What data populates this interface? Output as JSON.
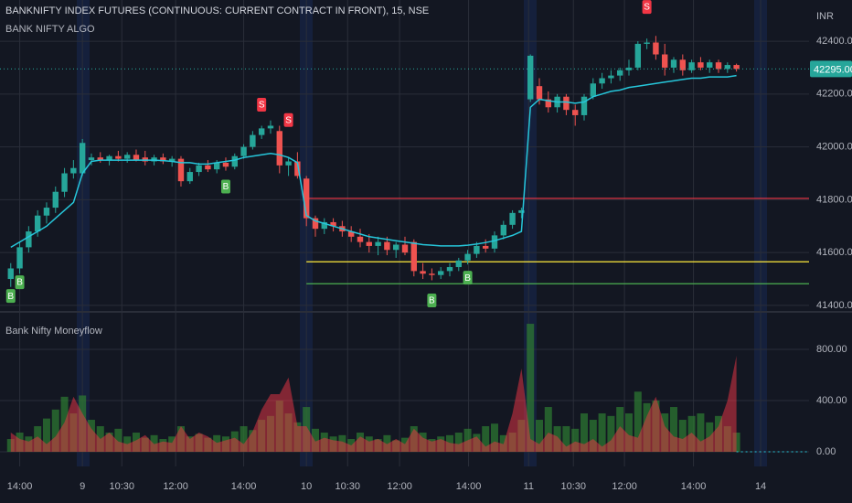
{
  "chart_data": [
    {
      "type": "candlestick",
      "title": "BANKNIFTY INDEX FUTURES (CONTINUOUS: CURRENT CONTRACT IN FRONT), 15, NSE",
      "subtitle": "BANK NIFTY ALGO",
      "currency": "INR",
      "up_color": "#26a69a",
      "down_color": "#ef5350",
      "open": [
        41500,
        41540,
        41620,
        41680,
        41740,
        41770,
        41830,
        41900,
        41900,
        41950,
        41960,
        41950,
        41965,
        41955,
        41970,
        41960,
        41945,
        41960,
        41945,
        41955,
        41870,
        41905,
        41930,
        41915,
        41940,
        41925,
        41965,
        42000,
        42045,
        42070,
        42060,
        41930,
        41945,
        41880,
        41730,
        41690,
        41715,
        41700,
        41680,
        41660,
        41640,
        41625,
        41640,
        41610,
        41630,
        41640,
        41530,
        41520,
        41515,
        41530,
        41545,
        41570,
        41595,
        41625,
        41615,
        41665,
        41705,
        41750,
        42180,
        42230,
        42180,
        42150,
        42190,
        42140,
        42120,
        42190,
        42240,
        42260,
        42270,
        42290,
        42300,
        42390,
        42395,
        42350,
        42300,
        42330,
        42290,
        42320,
        42300,
        42320,
        42295,
        42310
      ],
      "high": [
        41560,
        41640,
        41700,
        41760,
        41790,
        41850,
        41920,
        41950,
        42030,
        41975,
        41980,
        41970,
        41985,
        41980,
        41990,
        41985,
        41970,
        41975,
        41965,
        41965,
        41920,
        41940,
        41950,
        41950,
        41960,
        41975,
        42010,
        42060,
        42080,
        42100,
        42080,
        41960,
        41980,
        41890,
        41740,
        41730,
        41730,
        41720,
        41700,
        41690,
        41670,
        41660,
        41660,
        41640,
        41660,
        41650,
        41560,
        41540,
        41545,
        41560,
        41580,
        41610,
        41640,
        41650,
        41680,
        41720,
        41760,
        41770,
        42350,
        42260,
        42210,
        42200,
        42200,
        42160,
        42200,
        42260,
        42280,
        42290,
        42300,
        42330,
        42400,
        42410,
        42420,
        42390,
        42340,
        42350,
        42330,
        42340,
        42330,
        42330,
        42320,
        42315
      ],
      "low": [
        41470,
        41520,
        41600,
        41660,
        41710,
        41750,
        41810,
        41880,
        41890,
        41930,
        41940,
        41930,
        41945,
        41940,
        41945,
        41930,
        41930,
        41935,
        41925,
        41850,
        41860,
        41890,
        41905,
        41900,
        41910,
        41915,
        41955,
        41990,
        42030,
        42050,
        41900,
        41890,
        41880,
        41700,
        41660,
        41670,
        41680,
        41660,
        41640,
        41620,
        41600,
        41590,
        41590,
        41580,
        41590,
        41510,
        41500,
        41495,
        41500,
        41510,
        41530,
        41555,
        41580,
        41600,
        41600,
        41650,
        41690,
        41730,
        42170,
        42160,
        42130,
        42130,
        42120,
        42080,
        42100,
        42180,
        42220,
        42240,
        42250,
        42270,
        42290,
        42370,
        42330,
        42270,
        42280,
        42270,
        42280,
        42290,
        42280,
        42280,
        42280,
        42285
      ],
      "close": [
        41540,
        41620,
        41680,
        41740,
        41770,
        41830,
        41900,
        41920,
        42015,
        41960,
        41950,
        41965,
        41955,
        41970,
        41950,
        41945,
        41960,
        41945,
        41955,
        41870,
        41905,
        41930,
        41915,
        41940,
        41925,
        41965,
        42000,
        42045,
        42070,
        42080,
        41930,
        41945,
        41890,
        41730,
        41690,
        41715,
        41700,
        41680,
        41660,
        41640,
        41625,
        41640,
        41610,
        41630,
        41600,
        41530,
        41520,
        41515,
        41530,
        41545,
        41570,
        41595,
        41625,
        41615,
        41665,
        41705,
        41750,
        41760,
        42345,
        42180,
        42150,
        42190,
        42140,
        42120,
        42190,
        42240,
        42260,
        42270,
        42290,
        42300,
        42390,
        42395,
        42350,
        42300,
        42330,
        42290,
        42320,
        42300,
        42320,
        42295,
        42310,
        42295
      ],
      "ma": {
        "color": "#26c6da",
        "values": [
          41620,
          41640,
          41660,
          41680,
          41700,
          41730,
          41760,
          41790,
          41900,
          41945,
          41950,
          41950,
          41950,
          41950,
          41950,
          41950,
          41950,
          41948,
          41945,
          41940,
          41940,
          41935,
          41935,
          41940,
          41945,
          41950,
          41960,
          41965,
          41970,
          41975,
          41970,
          41960,
          41940,
          41740,
          41720,
          41710,
          41700,
          41690,
          41680,
          41670,
          41660,
          41655,
          41650,
          41645,
          41640,
          41635,
          41630,
          41628,
          41625,
          41625,
          41625,
          41628,
          41632,
          41638,
          41645,
          41655,
          41665,
          41680,
          42150,
          42180,
          42175,
          42170,
          42170,
          42165,
          42170,
          42190,
          42200,
          42210,
          42215,
          42225,
          42230,
          42235,
          42240,
          42245,
          42250,
          42255,
          42260,
          42260,
          42265,
          42265,
          42265,
          42270
        ]
      },
      "levels": [
        {
          "value": 41805,
          "color": "#f23645",
          "x": 33
        },
        {
          "value": 41565,
          "color": "#ffeb3b",
          "x": 33
        },
        {
          "value": 41482,
          "color": "#4caf50",
          "x": 33
        }
      ],
      "signals": [
        {
          "label": "B",
          "x": 0,
          "value": 41434,
          "color": "#4caf50"
        },
        {
          "label": "B",
          "x": 1,
          "value": 41486,
          "color": "#4caf50"
        },
        {
          "label": "B",
          "x": 24,
          "value": 41848,
          "color": "#4caf50"
        },
        {
          "label": "B",
          "x": 47,
          "value": 41417,
          "color": "#4caf50"
        },
        {
          "label": "B",
          "x": 51,
          "value": 41503,
          "color": "#4caf50"
        },
        {
          "label": "S",
          "x": 28,
          "value": 42158,
          "color": "#f23645"
        },
        {
          "label": "S",
          "x": 31,
          "value": 42100,
          "color": "#f23645"
        },
        {
          "label": "S",
          "x": 71,
          "value": 42528,
          "color": "#f23645"
        }
      ],
      "last_price": {
        "value": 42295,
        "label": "42295.00",
        "color": "#26a69a"
      },
      "ylim": [
        41379,
        42556
      ],
      "yticks": [
        {
          "value": 41400,
          "label": "41400.00"
        },
        {
          "value": 41600,
          "label": "41600.00"
        },
        {
          "value": 41800,
          "label": "41800.00"
        },
        {
          "value": 42000,
          "label": "42000.00"
        },
        {
          "value": 42200,
          "label": "42200.00"
        },
        {
          "value": 42400,
          "label": "42400.00"
        }
      ],
      "xlim": [
        -1.2,
        89.1
      ],
      "xticks": [
        {
          "value": 1,
          "label": "14:00"
        },
        {
          "value": 8,
          "label": "9"
        },
        {
          "value": 12.4,
          "label": "10:30"
        },
        {
          "value": 18.4,
          "label": "12:00"
        },
        {
          "value": 26,
          "label": "14:00"
        },
        {
          "value": 33,
          "label": "10"
        },
        {
          "value": 37.6,
          "label": "10:30"
        },
        {
          "value": 43.4,
          "label": "12:00"
        },
        {
          "value": 51.1,
          "label": "14:00"
        },
        {
          "value": 57.8,
          "label": "11"
        },
        {
          "value": 62.8,
          "label": "10:30"
        },
        {
          "value": 68.5,
          "label": "12:00"
        },
        {
          "value": 76.2,
          "label": "14:00"
        },
        {
          "value": 83.7,
          "label": "14"
        }
      ],
      "grid": true
    },
    {
      "type": "moneyflow",
      "title": "Bank Nifty Moneyflow",
      "bars": {
        "color": "#2e7d32",
        "values": [
          100,
          150,
          120,
          200,
          260,
          330,
          430,
          300,
          440,
          250,
          200,
          150,
          180,
          120,
          150,
          110,
          130,
          100,
          120,
          200,
          120,
          140,
          110,
          130,
          120,
          160,
          200,
          170,
          250,
          280,
          400,
          300,
          230,
          350,
          180,
          150,
          120,
          130,
          100,
          150,
          120,
          100,
          130,
          90,
          110,
          200,
          150,
          100,
          120,
          130,
          150,
          180,
          140,
          200,
          220,
          130,
          150,
          250,
          1000,
          250,
          350,
          200,
          200,
          180,
          300,
          250,
          300,
          280,
          350,
          300,
          470,
          380,
          400,
          300,
          350,
          250,
          280,
          300,
          230,
          280,
          200,
          150
        ]
      },
      "area": {
        "color": "#f23645",
        "values": [
          150,
          100,
          80,
          120,
          60,
          120,
          230,
          430,
          300,
          180,
          100,
          150,
          80,
          60,
          90,
          130,
          60,
          80,
          70,
          200,
          100,
          150,
          120,
          70,
          90,
          110,
          60,
          160,
          330,
          450,
          450,
          580,
          200,
          200,
          80,
          110,
          90,
          80,
          50,
          120,
          80,
          100,
          60,
          100,
          60,
          180,
          110,
          80,
          100,
          70,
          60,
          90,
          120,
          40,
          80,
          60,
          300,
          650,
          100,
          60,
          150,
          120,
          40,
          80,
          60,
          100,
          40,
          90,
          200,
          130,
          110,
          280,
          430,
          200,
          120,
          100,
          150,
          80,
          120,
          200,
          400,
          750
        ]
      },
      "ylim": [
        -114,
        1086
      ],
      "yticks": [
        {
          "value": 0,
          "label": "0.00"
        },
        {
          "value": 400,
          "label": "400.00"
        },
        {
          "value": 800,
          "label": "800.00"
        }
      ],
      "xlim": [
        -1.2,
        89.1
      ],
      "grid": true
    }
  ]
}
